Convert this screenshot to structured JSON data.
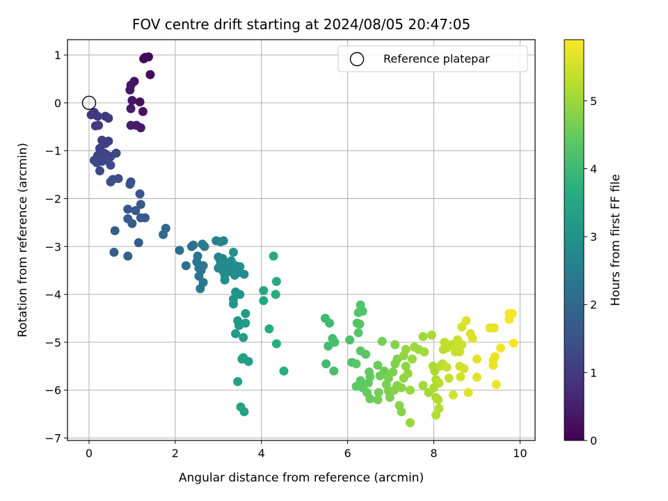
{
  "chart_data": {
    "type": "scatter",
    "title": "FOV centre drift starting at 2024/08/05 20:47:05",
    "xlabel": "Angular distance from reference (arcmin)",
    "ylabel": "Rotation from reference (arcmin)",
    "xlim": [
      -0.5,
      10.35
    ],
    "ylim": [
      -7.05,
      1.32
    ],
    "xticks": [
      0,
      2,
      4,
      6,
      8,
      10
    ],
    "yticks": [
      1,
      0,
      -1,
      -2,
      -3,
      -4,
      -5,
      -6,
      -7
    ],
    "grid": true,
    "legend": {
      "position": "top-right",
      "entries": [
        "Reference platepar"
      ]
    },
    "reference_point": {
      "x": 0,
      "y": 0,
      "label": "Reference platepar"
    },
    "colorbar": {
      "label": "Hours from first FF file",
      "range": [
        0,
        5.9
      ],
      "ticks": [
        0,
        1,
        2,
        3,
        4,
        5
      ],
      "colormap": "viridis"
    },
    "points": [
      {
        "x": 1.3,
        "y": 0.95,
        "t": 0.05
      },
      {
        "x": 1.38,
        "y": 0.96,
        "t": 0.08
      },
      {
        "x": 1.27,
        "y": 0.92,
        "t": 0.1
      },
      {
        "x": 1.42,
        "y": 0.59,
        "t": 0.12
      },
      {
        "x": 1.05,
        "y": 0.45,
        "t": 0.3
      },
      {
        "x": 0.97,
        "y": 0.37,
        "t": 0.32
      },
      {
        "x": 0.95,
        "y": 0.27,
        "t": 0.35
      },
      {
        "x": 1.0,
        "y": 0.05,
        "t": 0.38
      },
      {
        "x": 0.97,
        "y": -0.12,
        "t": 0.4
      },
      {
        "x": 1.18,
        "y": 0.02,
        "t": 0.25
      },
      {
        "x": 1.25,
        "y": -0.18,
        "t": 0.28
      },
      {
        "x": 0.97,
        "y": -0.47,
        "t": 0.5
      },
      {
        "x": 1.1,
        "y": -0.47,
        "t": 0.45
      },
      {
        "x": 1.2,
        "y": -0.52,
        "t": 0.42
      },
      {
        "x": 0.05,
        "y": -0.25,
        "t": 0.9
      },
      {
        "x": 0.12,
        "y": -0.2,
        "t": 0.95
      },
      {
        "x": 0.2,
        "y": -0.28,
        "t": 0.98
      },
      {
        "x": 0.15,
        "y": -0.48,
        "t": 1.0
      },
      {
        "x": 0.22,
        "y": -0.47,
        "t": 1.02
      },
      {
        "x": 0.38,
        "y": -0.28,
        "t": 0.97
      },
      {
        "x": 0.45,
        "y": -0.32,
        "t": 1.0
      },
      {
        "x": 0.3,
        "y": -0.78,
        "t": 1.05
      },
      {
        "x": 0.38,
        "y": -0.85,
        "t": 1.08
      },
      {
        "x": 0.45,
        "y": -0.8,
        "t": 1.1
      },
      {
        "x": 0.25,
        "y": -0.95,
        "t": 1.1
      },
      {
        "x": 0.35,
        "y": -1.05,
        "t": 1.12
      },
      {
        "x": 0.2,
        "y": -1.1,
        "t": 1.15
      },
      {
        "x": 0.28,
        "y": -1.12,
        "t": 1.16
      },
      {
        "x": 0.4,
        "y": -1.08,
        "t": 1.17
      },
      {
        "x": 0.5,
        "y": -1.12,
        "t": 1.2
      },
      {
        "x": 0.63,
        "y": -1.05,
        "t": 1.22
      },
      {
        "x": 0.12,
        "y": -1.2,
        "t": 1.23
      },
      {
        "x": 0.18,
        "y": -1.25,
        "t": 1.25
      },
      {
        "x": 0.3,
        "y": -1.22,
        "t": 1.26
      },
      {
        "x": 0.42,
        "y": -1.2,
        "t": 1.28
      },
      {
        "x": 0.5,
        "y": -1.3,
        "t": 1.3
      },
      {
        "x": 0.25,
        "y": -1.42,
        "t": 1.32
      },
      {
        "x": 0.55,
        "y": -1.6,
        "t": 1.35
      },
      {
        "x": 0.5,
        "y": -1.65,
        "t": 1.38
      },
      {
        "x": 0.68,
        "y": -1.58,
        "t": 1.4
      },
      {
        "x": 0.97,
        "y": -1.65,
        "t": 1.5
      },
      {
        "x": 0.95,
        "y": -1.7,
        "t": 1.52
      },
      {
        "x": 1.18,
        "y": -1.9,
        "t": 1.55
      },
      {
        "x": 1.2,
        "y": -2.12,
        "t": 1.58
      },
      {
        "x": 0.9,
        "y": -2.22,
        "t": 1.6
      },
      {
        "x": 1.08,
        "y": -2.25,
        "t": 1.62
      },
      {
        "x": 1.2,
        "y": -2.4,
        "t": 1.65
      },
      {
        "x": 1.3,
        "y": -2.4,
        "t": 1.67
      },
      {
        "x": 0.9,
        "y": -2.42,
        "t": 1.68
      },
      {
        "x": 1.0,
        "y": -2.52,
        "t": 1.7
      },
      {
        "x": 0.6,
        "y": -2.67,
        "t": 1.72
      },
      {
        "x": 1.15,
        "y": -2.92,
        "t": 1.75
      },
      {
        "x": 0.58,
        "y": -3.12,
        "t": 1.78
      },
      {
        "x": 0.9,
        "y": -3.2,
        "t": 1.8
      },
      {
        "x": 1.78,
        "y": -2.62,
        "t": 2.0
      },
      {
        "x": 1.72,
        "y": -2.75,
        "t": 2.02
      },
      {
        "x": 2.1,
        "y": -3.08,
        "t": 2.1
      },
      {
        "x": 2.25,
        "y": -3.4,
        "t": 2.15
      },
      {
        "x": 2.38,
        "y": -3.0,
        "t": 2.2
      },
      {
        "x": 2.42,
        "y": -2.97,
        "t": 2.22
      },
      {
        "x": 2.52,
        "y": -3.2,
        "t": 2.25
      },
      {
        "x": 2.5,
        "y": -3.32,
        "t": 2.27
      },
      {
        "x": 2.55,
        "y": -3.45,
        "t": 2.3
      },
      {
        "x": 2.6,
        "y": -3.5,
        "t": 2.32
      },
      {
        "x": 2.65,
        "y": -3.4,
        "t": 2.33
      },
      {
        "x": 2.55,
        "y": -3.62,
        "t": 2.35
      },
      {
        "x": 2.65,
        "y": -3.75,
        "t": 2.38
      },
      {
        "x": 2.58,
        "y": -3.88,
        "t": 2.4
      },
      {
        "x": 2.63,
        "y": -2.95,
        "t": 2.42
      },
      {
        "x": 2.68,
        "y": -3.0,
        "t": 2.43
      },
      {
        "x": 2.95,
        "y": -2.88,
        "t": 2.6
      },
      {
        "x": 3.05,
        "y": -2.9,
        "t": 2.62
      },
      {
        "x": 3.12,
        "y": -2.88,
        "t": 2.63
      },
      {
        "x": 3.0,
        "y": -3.22,
        "t": 2.65
      },
      {
        "x": 3.1,
        "y": -3.25,
        "t": 2.67
      },
      {
        "x": 3.05,
        "y": -3.32,
        "t": 2.68
      },
      {
        "x": 3.15,
        "y": -3.35,
        "t": 2.7
      },
      {
        "x": 3.2,
        "y": -3.42,
        "t": 2.72
      },
      {
        "x": 3.0,
        "y": -3.45,
        "t": 2.73
      },
      {
        "x": 3.1,
        "y": -3.5,
        "t": 2.75
      },
      {
        "x": 3.25,
        "y": -3.52,
        "t": 2.77
      },
      {
        "x": 3.35,
        "y": -3.48,
        "t": 2.78
      },
      {
        "x": 3.4,
        "y": -3.4,
        "t": 2.8
      },
      {
        "x": 3.5,
        "y": -3.42,
        "t": 2.82
      },
      {
        "x": 3.45,
        "y": -3.55,
        "t": 2.83
      },
      {
        "x": 3.38,
        "y": -3.6,
        "t": 2.85
      },
      {
        "x": 3.6,
        "y": -3.58,
        "t": 2.87
      },
      {
        "x": 3.15,
        "y": -3.6,
        "t": 2.88
      },
      {
        "x": 3.15,
        "y": -3.7,
        "t": 2.9
      },
      {
        "x": 3.3,
        "y": -3.3,
        "t": 2.92
      },
      {
        "x": 3.35,
        "y": -3.12,
        "t": 2.95
      },
      {
        "x": 3.4,
        "y": -3.95,
        "t": 3.0
      },
      {
        "x": 3.5,
        "y": -4.0,
        "t": 3.02
      },
      {
        "x": 3.35,
        "y": -4.1,
        "t": 3.05
      },
      {
        "x": 3.35,
        "y": -4.2,
        "t": 3.07
      },
      {
        "x": 3.45,
        "y": -4.55,
        "t": 3.1
      },
      {
        "x": 3.48,
        "y": -4.65,
        "t": 3.12
      },
      {
        "x": 3.4,
        "y": -4.82,
        "t": 3.15
      },
      {
        "x": 3.63,
        "y": -4.4,
        "t": 3.17
      },
      {
        "x": 3.63,
        "y": -4.6,
        "t": 3.2
      },
      {
        "x": 3.58,
        "y": -4.9,
        "t": 3.22
      },
      {
        "x": 3.55,
        "y": -5.35,
        "t": 3.25
      },
      {
        "x": 3.58,
        "y": -5.32,
        "t": 3.27
      },
      {
        "x": 3.7,
        "y": -5.4,
        "t": 3.3
      },
      {
        "x": 3.45,
        "y": -5.82,
        "t": 3.32
      },
      {
        "x": 3.52,
        "y": -6.35,
        "t": 3.35
      },
      {
        "x": 3.6,
        "y": -6.45,
        "t": 3.37
      },
      {
        "x": 4.05,
        "y": -3.92,
        "t": 3.5
      },
      {
        "x": 4.05,
        "y": -4.13,
        "t": 3.52
      },
      {
        "x": 4.28,
        "y": -3.2,
        "t": 3.55
      },
      {
        "x": 4.35,
        "y": -3.73,
        "t": 3.57
      },
      {
        "x": 4.33,
        "y": -4.0,
        "t": 3.6
      },
      {
        "x": 4.18,
        "y": -4.72,
        "t": 3.62
      },
      {
        "x": 4.35,
        "y": -5.03,
        "t": 3.65
      },
      {
        "x": 4.52,
        "y": -5.6,
        "t": 3.68
      },
      {
        "x": 5.48,
        "y": -4.5,
        "t": 4.0
      },
      {
        "x": 5.58,
        "y": -4.6,
        "t": 4.02
      },
      {
        "x": 5.55,
        "y": -5.08,
        "t": 4.05
      },
      {
        "x": 5.5,
        "y": -5.45,
        "t": 4.07
      },
      {
        "x": 5.65,
        "y": -4.92,
        "t": 4.1
      },
      {
        "x": 5.7,
        "y": -5.0,
        "t": 4.12
      },
      {
        "x": 5.68,
        "y": -5.6,
        "t": 4.15
      },
      {
        "x": 6.05,
        "y": -4.95,
        "t": 4.2
      },
      {
        "x": 6.1,
        "y": -5.42,
        "t": 4.22
      },
      {
        "x": 6.3,
        "y": -4.22,
        "t": 4.25
      },
      {
        "x": 6.35,
        "y": -4.35,
        "t": 4.27
      },
      {
        "x": 6.25,
        "y": -4.38,
        "t": 4.28
      },
      {
        "x": 6.22,
        "y": -4.6,
        "t": 4.3
      },
      {
        "x": 6.28,
        "y": -4.62,
        "t": 4.32
      },
      {
        "x": 6.25,
        "y": -4.8,
        "t": 4.33
      },
      {
        "x": 6.3,
        "y": -5.18,
        "t": 4.35
      },
      {
        "x": 6.42,
        "y": -5.25,
        "t": 4.37
      },
      {
        "x": 6.2,
        "y": -5.45,
        "t": 4.38
      },
      {
        "x": 6.3,
        "y": -5.8,
        "t": 4.4
      },
      {
        "x": 6.2,
        "y": -5.92,
        "t": 4.42
      },
      {
        "x": 6.35,
        "y": -5.95,
        "t": 4.43
      },
      {
        "x": 6.5,
        "y": -5.62,
        "t": 4.45
      },
      {
        "x": 6.52,
        "y": -5.72,
        "t": 4.47
      },
      {
        "x": 6.48,
        "y": -5.85,
        "t": 4.48
      },
      {
        "x": 6.45,
        "y": -6.05,
        "t": 4.5
      },
      {
        "x": 6.52,
        "y": -6.18,
        "t": 4.52
      },
      {
        "x": 6.7,
        "y": -5.48,
        "t": 4.55
      },
      {
        "x": 6.75,
        "y": -5.7,
        "t": 4.57
      },
      {
        "x": 6.85,
        "y": -5.6,
        "t": 4.58
      },
      {
        "x": 6.72,
        "y": -6.05,
        "t": 4.6
      },
      {
        "x": 6.7,
        "y": -6.2,
        "t": 4.62
      },
      {
        "x": 6.8,
        "y": -4.98,
        "t": 4.63
      },
      {
        "x": 6.95,
        "y": -5.75,
        "t": 4.65
      },
      {
        "x": 6.9,
        "y": -5.88,
        "t": 4.67
      },
      {
        "x": 6.95,
        "y": -6.02,
        "t": 4.68
      },
      {
        "x": 6.98,
        "y": -6.15,
        "t": 4.7
      },
      {
        "x": 7.05,
        "y": -5.62,
        "t": 4.72
      },
      {
        "x": 7.1,
        "y": -5.45,
        "t": 4.73
      },
      {
        "x": 7.15,
        "y": -5.35,
        "t": 4.75
      },
      {
        "x": 7.1,
        "y": -5.05,
        "t": 4.77
      },
      {
        "x": 7.08,
        "y": -6.0,
        "t": 4.78
      },
      {
        "x": 7.15,
        "y": -5.9,
        "t": 4.8
      },
      {
        "x": 7.2,
        "y": -6.32,
        "t": 4.82
      },
      {
        "x": 7.25,
        "y": -6.45,
        "t": 4.83
      },
      {
        "x": 7.25,
        "y": -5.95,
        "t": 4.85
      },
      {
        "x": 7.3,
        "y": -5.75,
        "t": 4.87
      },
      {
        "x": 7.35,
        "y": -5.5,
        "t": 4.88
      },
      {
        "x": 7.3,
        "y": -5.28,
        "t": 4.9
      },
      {
        "x": 7.35,
        "y": -5.15,
        "t": 4.92
      },
      {
        "x": 7.4,
        "y": -5.65,
        "t": 4.93
      },
      {
        "x": 7.45,
        "y": -6.0,
        "t": 4.95
      },
      {
        "x": 7.45,
        "y": -6.68,
        "t": 4.97
      },
      {
        "x": 7.5,
        "y": -5.35,
        "t": 4.98
      },
      {
        "x": 7.55,
        "y": -5.1,
        "t": 5.0
      },
      {
        "x": 7.65,
        "y": -5.15,
        "t": 5.02
      },
      {
        "x": 7.75,
        "y": -4.88,
        "t": 5.03
      },
      {
        "x": 7.78,
        "y": -5.2,
        "t": 5.05
      },
      {
        "x": 7.75,
        "y": -5.9,
        "t": 5.07
      },
      {
        "x": 7.88,
        "y": -6.05,
        "t": 5.08
      },
      {
        "x": 7.95,
        "y": -4.85,
        "t": 5.1
      },
      {
        "x": 7.98,
        "y": -5.5,
        "t": 5.12
      },
      {
        "x": 8.02,
        "y": -5.6,
        "t": 5.13
      },
      {
        "x": 8.05,
        "y": -5.78,
        "t": 5.15
      },
      {
        "x": 8.0,
        "y": -5.95,
        "t": 5.17
      },
      {
        "x": 8.05,
        "y": -6.15,
        "t": 5.18
      },
      {
        "x": 8.1,
        "y": -6.2,
        "t": 5.2
      },
      {
        "x": 8.05,
        "y": -6.52,
        "t": 5.22
      },
      {
        "x": 8.12,
        "y": -6.38,
        "t": 5.23
      },
      {
        "x": 8.12,
        "y": -5.85,
        "t": 5.25
      },
      {
        "x": 8.15,
        "y": -5.5,
        "t": 5.27
      },
      {
        "x": 8.2,
        "y": -5.45,
        "t": 5.28
      },
      {
        "x": 8.25,
        "y": -5.0,
        "t": 5.3
      },
      {
        "x": 8.22,
        "y": -5.15,
        "t": 5.32
      },
      {
        "x": 8.3,
        "y": -5.12,
        "t": 5.33
      },
      {
        "x": 8.4,
        "y": -5.05,
        "t": 5.35
      },
      {
        "x": 8.3,
        "y": -5.52,
        "t": 5.37
      },
      {
        "x": 8.35,
        "y": -5.75,
        "t": 5.38
      },
      {
        "x": 8.5,
        "y": -5.2,
        "t": 5.4
      },
      {
        "x": 8.55,
        "y": -4.95,
        "t": 5.42
      },
      {
        "x": 8.58,
        "y": -5.1,
        "t": 5.43
      },
      {
        "x": 8.6,
        "y": -5.2,
        "t": 5.45
      },
      {
        "x": 8.65,
        "y": -5.05,
        "t": 5.47
      },
      {
        "x": 8.6,
        "y": -5.5,
        "t": 5.48
      },
      {
        "x": 8.7,
        "y": -5.55,
        "t": 5.5
      },
      {
        "x": 8.62,
        "y": -5.72,
        "t": 5.52
      },
      {
        "x": 8.45,
        "y": -6.1,
        "t": 5.53
      },
      {
        "x": 8.65,
        "y": -4.68,
        "t": 5.55
      },
      {
        "x": 8.75,
        "y": -4.55,
        "t": 5.57
      },
      {
        "x": 8.85,
        "y": -4.82,
        "t": 5.58
      },
      {
        "x": 8.9,
        "y": -4.92,
        "t": 5.6
      },
      {
        "x": 8.8,
        "y": -6.05,
        "t": 5.62
      },
      {
        "x": 9.0,
        "y": -5.35,
        "t": 5.63
      },
      {
        "x": 9.0,
        "y": -5.73,
        "t": 5.65
      },
      {
        "x": 9.3,
        "y": -4.7,
        "t": 5.67
      },
      {
        "x": 9.4,
        "y": -4.7,
        "t": 5.68
      },
      {
        "x": 9.38,
        "y": -5.38,
        "t": 5.7
      },
      {
        "x": 9.42,
        "y": -5.3,
        "t": 5.72
      },
      {
        "x": 9.38,
        "y": -5.48,
        "t": 5.73
      },
      {
        "x": 9.45,
        "y": -5.88,
        "t": 5.75
      },
      {
        "x": 9.55,
        "y": -5.12,
        "t": 5.77
      },
      {
        "x": 9.75,
        "y": -4.4,
        "t": 5.8
      },
      {
        "x": 9.82,
        "y": -4.4,
        "t": 5.82
      },
      {
        "x": 9.75,
        "y": -4.52,
        "t": 5.83
      },
      {
        "x": 9.85,
        "y": -5.02,
        "t": 5.85
      }
    ]
  }
}
